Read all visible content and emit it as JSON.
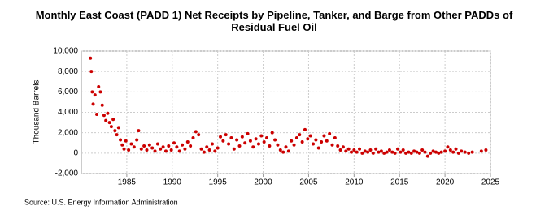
{
  "chart_data": {
    "type": "scatter",
    "title": "Monthly East Coast (PADD 1) Net Receipts by Pipeline, Tanker, and Barge from Other PADDs of Residual Fuel Oil",
    "y_label": "Thousand Barrels",
    "source": "Source: U.S. Energy Information Administration",
    "xlim": [
      1980,
      2025
    ],
    "xticks": [
      1985,
      1990,
      1995,
      2000,
      2005,
      2010,
      2015,
      2020,
      2025
    ],
    "ylim": [
      -2000,
      10000
    ],
    "yticks": [
      {
        "value": -2000,
        "label": "-2,000"
      },
      0,
      {
        "value": 2000,
        "label": "2,000"
      },
      {
        "value": 4000,
        "label": "4,000"
      },
      {
        "value": 6000,
        "label": "6,000"
      },
      {
        "value": 8000,
        "label": "8,000"
      },
      {
        "value": 10000,
        "label": "10,000"
      }
    ],
    "grid": true,
    "color": "#cc0000",
    "x": [
      1981.0,
      1981.1,
      1981.2,
      1981.3,
      1981.5,
      1981.7,
      1981.9,
      1982.1,
      1982.3,
      1982.5,
      1982.7,
      1982.9,
      1983.1,
      1983.3,
      1983.5,
      1983.7,
      1983.9,
      1984.1,
      1984.3,
      1984.5,
      1984.7,
      1984.9,
      1985.2,
      1985.5,
      1985.8,
      1986.1,
      1986.3,
      1986.6,
      1986.9,
      1987.2,
      1987.5,
      1987.8,
      1988.1,
      1988.4,
      1988.7,
      1989.0,
      1989.3,
      1989.6,
      1989.9,
      1990.2,
      1990.5,
      1990.8,
      1991.1,
      1991.4,
      1991.7,
      1992.0,
      1992.3,
      1992.6,
      1992.9,
      1993.2,
      1993.5,
      1993.8,
      1994.1,
      1994.4,
      1994.7,
      1995.0,
      1995.3,
      1995.6,
      1995.9,
      1996.2,
      1996.5,
      1996.8,
      1997.1,
      1997.4,
      1997.7,
      1998.0,
      1998.3,
      1998.6,
      1998.9,
      1999.2,
      1999.5,
      1999.8,
      2000.1,
      2000.4,
      2000.7,
      2001.0,
      2001.3,
      2001.6,
      2001.9,
      2002.2,
      2002.5,
      2002.8,
      2003.1,
      2003.4,
      2003.7,
      2004.0,
      2004.3,
      2004.6,
      2004.9,
      2005.2,
      2005.5,
      2005.8,
      2006.1,
      2006.4,
      2006.7,
      2007.0,
      2007.3,
      2007.6,
      2007.9,
      2008.2,
      2008.5,
      2008.8,
      2009.1,
      2009.4,
      2009.7,
      2010.0,
      2010.3,
      2010.6,
      2010.9,
      2011.2,
      2011.5,
      2011.8,
      2012.1,
      2012.4,
      2012.7,
      2013.0,
      2013.3,
      2013.6,
      2013.9,
      2014.2,
      2014.5,
      2014.8,
      2015.1,
      2015.4,
      2015.7,
      2016.0,
      2016.3,
      2016.6,
      2016.9,
      2017.2,
      2017.5,
      2017.8,
      2018.1,
      2018.4,
      2018.7,
      2019.0,
      2019.3,
      2019.6,
      2020.0,
      2020.3,
      2020.6,
      2020.9,
      2021.2,
      2021.5,
      2021.8,
      2022.2,
      2022.6,
      2023.0,
      2024.0,
      2024.5
    ],
    "values": [
      9300,
      8000,
      6000,
      4800,
      5700,
      3800,
      6500,
      6000,
      4700,
      3700,
      3200,
      3900,
      3000,
      2600,
      3300,
      2200,
      1800,
      2500,
      1300,
      800,
      400,
      1200,
      300,
      900,
      600,
      1300,
      2200,
      400,
      700,
      300,
      800,
      500,
      200,
      900,
      400,
      600,
      200,
      700,
      300,
      1000,
      600,
      200,
      800,
      400,
      1100,
      700,
      1500,
      2100,
      1800,
      400,
      100,
      600,
      300,
      900,
      200,
      500,
      1600,
      1200,
      1800,
      900,
      1500,
      400,
      1300,
      700,
      1600,
      1000,
      1900,
      1200,
      600,
      1400,
      900,
      1700,
      1100,
      1500,
      700,
      2000,
      1300,
      800,
      300,
      100,
      600,
      200,
      1200,
      800,
      1500,
      1800,
      1100,
      2300,
      1400,
      1700,
      900,
      1300,
      500,
      1100,
      1700,
      1200,
      1900,
      800,
      1500,
      700,
      300,
      600,
      200,
      400,
      100,
      300,
      100,
      400,
      0,
      200,
      100,
      300,
      0,
      400,
      100,
      200,
      0,
      100,
      300,
      100,
      0,
      400,
      100,
      300,
      0,
      100,
      0,
      200,
      100,
      0,
      300,
      100,
      -300,
      0,
      200,
      100,
      0,
      100,
      200,
      600,
      300,
      100,
      400,
      0,
      200,
      100,
      0,
      100,
      200,
      300
    ]
  }
}
